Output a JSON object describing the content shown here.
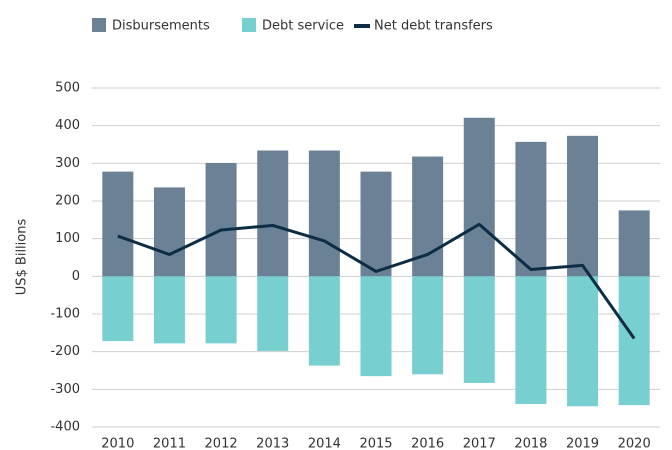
{
  "chart_data": {
    "type": "bar",
    "categories": [
      "2010",
      "2011",
      "2012",
      "2013",
      "2014",
      "2015",
      "2016",
      "2017",
      "2018",
      "2019",
      "2020"
    ],
    "series": [
      {
        "name": "Disbursements",
        "color": "#6b8196",
        "type": "bar",
        "values": [
          278,
          236,
          301,
          334,
          334,
          278,
          318,
          421,
          357,
          373,
          175
        ]
      },
      {
        "name": "Debt service",
        "color": "#77cfcf",
        "type": "bar",
        "values": [
          -172,
          -178,
          -178,
          -198,
          -237,
          -265,
          -260,
          -283,
          -339,
          -345,
          -342
        ]
      },
      {
        "name": "Net debt transfers",
        "color": "#0d2d45",
        "type": "line",
        "values": [
          107,
          58,
          123,
          135,
          94,
          13,
          58,
          138,
          18,
          29,
          -165
        ]
      }
    ],
    "y_label": "US$ Billions",
    "ylim": [
      -400,
      500
    ],
    "yticks": [
      500,
      400,
      300,
      200,
      100,
      0,
      -100,
      -200,
      -300,
      -400
    ],
    "grid": true,
    "legend": "top-left"
  }
}
